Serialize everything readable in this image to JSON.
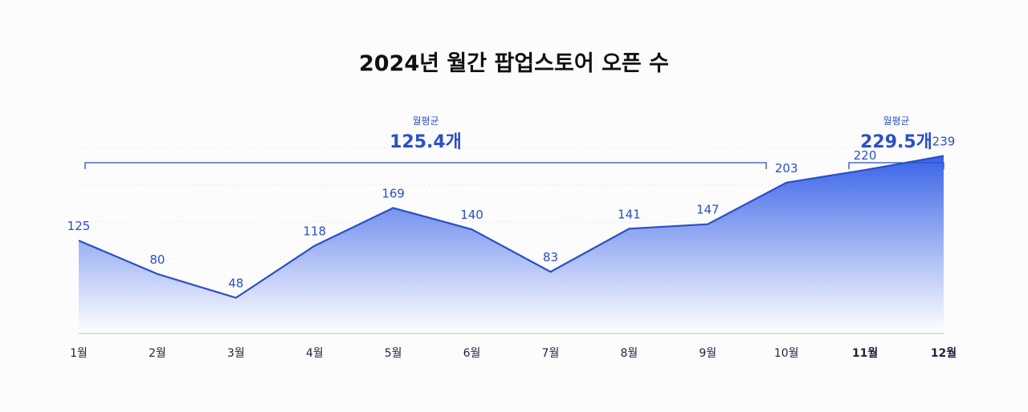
{
  "chart_data": {
    "type": "area",
    "title": "2024년 월간 팝업스토어 오픈 수",
    "categories": [
      "1월",
      "2월",
      "3월",
      "4월",
      "5월",
      "6월",
      "7월",
      "8월",
      "9월",
      "10월",
      "11월",
      "12월"
    ],
    "bold_categories": [
      10,
      11
    ],
    "series": [
      {
        "name": "팝업스토어 오픈 수",
        "values": [
          125,
          80,
          48,
          118,
          169,
          140,
          83,
          141,
          147,
          203,
          220,
          239
        ]
      }
    ],
    "annotations": [
      {
        "label": "월평균",
        "value_text": "125.4개",
        "from_index": 0,
        "to_index": 9
      },
      {
        "label": "월평균",
        "value_text": "229.5개",
        "from_index": 10,
        "to_index": 11
      }
    ],
    "ylim": [
      0,
      260
    ],
    "xlabel": "",
    "ylabel": "",
    "grid": true,
    "colors": {
      "accent": "#2a4fc8",
      "fill_top": "#2f5be6",
      "fill_bottom": "#ffffff",
      "line": "#2a4fc8",
      "grid": "#e7e9ef",
      "axis": "#c9ccd6",
      "text": "#1c2540"
    }
  }
}
